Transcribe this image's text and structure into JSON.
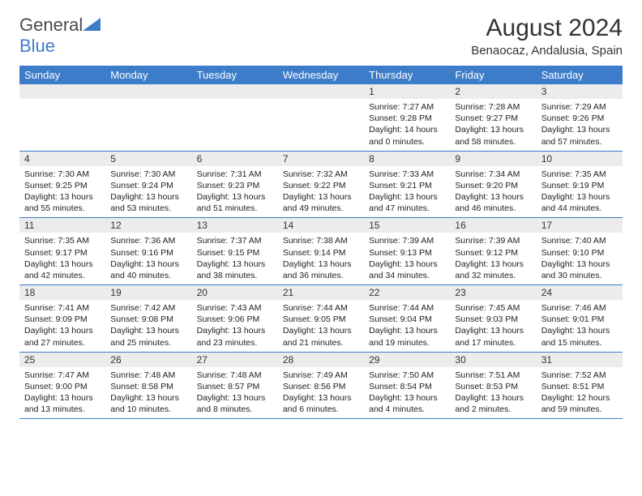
{
  "logo": {
    "text1": "General",
    "text2": "Blue"
  },
  "title": "August 2024",
  "location": "Benaocaz, Andalusia, Spain",
  "colors": {
    "header_bg": "#3d7cc9",
    "header_text": "#ffffff",
    "daynum_bg": "#ececec",
    "border": "#3d7cc9",
    "logo_gray": "#4a4a4a",
    "logo_blue": "#3d7cc9"
  },
  "weekdays": [
    "Sunday",
    "Monday",
    "Tuesday",
    "Wednesday",
    "Thursday",
    "Friday",
    "Saturday"
  ],
  "weeks": [
    {
      "nums": [
        "",
        "",
        "",
        "",
        "1",
        "2",
        "3"
      ],
      "cells": [
        null,
        null,
        null,
        null,
        {
          "sunrise": "7:27 AM",
          "sunset": "9:28 PM",
          "daylight": "14 hours and 0 minutes."
        },
        {
          "sunrise": "7:28 AM",
          "sunset": "9:27 PM",
          "daylight": "13 hours and 58 minutes."
        },
        {
          "sunrise": "7:29 AM",
          "sunset": "9:26 PM",
          "daylight": "13 hours and 57 minutes."
        }
      ]
    },
    {
      "nums": [
        "4",
        "5",
        "6",
        "7",
        "8",
        "9",
        "10"
      ],
      "cells": [
        {
          "sunrise": "7:30 AM",
          "sunset": "9:25 PM",
          "daylight": "13 hours and 55 minutes."
        },
        {
          "sunrise": "7:30 AM",
          "sunset": "9:24 PM",
          "daylight": "13 hours and 53 minutes."
        },
        {
          "sunrise": "7:31 AM",
          "sunset": "9:23 PM",
          "daylight": "13 hours and 51 minutes."
        },
        {
          "sunrise": "7:32 AM",
          "sunset": "9:22 PM",
          "daylight": "13 hours and 49 minutes."
        },
        {
          "sunrise": "7:33 AM",
          "sunset": "9:21 PM",
          "daylight": "13 hours and 47 minutes."
        },
        {
          "sunrise": "7:34 AM",
          "sunset": "9:20 PM",
          "daylight": "13 hours and 46 minutes."
        },
        {
          "sunrise": "7:35 AM",
          "sunset": "9:19 PM",
          "daylight": "13 hours and 44 minutes."
        }
      ]
    },
    {
      "nums": [
        "11",
        "12",
        "13",
        "14",
        "15",
        "16",
        "17"
      ],
      "cells": [
        {
          "sunrise": "7:35 AM",
          "sunset": "9:17 PM",
          "daylight": "13 hours and 42 minutes."
        },
        {
          "sunrise": "7:36 AM",
          "sunset": "9:16 PM",
          "daylight": "13 hours and 40 minutes."
        },
        {
          "sunrise": "7:37 AM",
          "sunset": "9:15 PM",
          "daylight": "13 hours and 38 minutes."
        },
        {
          "sunrise": "7:38 AM",
          "sunset": "9:14 PM",
          "daylight": "13 hours and 36 minutes."
        },
        {
          "sunrise": "7:39 AM",
          "sunset": "9:13 PM",
          "daylight": "13 hours and 34 minutes."
        },
        {
          "sunrise": "7:39 AM",
          "sunset": "9:12 PM",
          "daylight": "13 hours and 32 minutes."
        },
        {
          "sunrise": "7:40 AM",
          "sunset": "9:10 PM",
          "daylight": "13 hours and 30 minutes."
        }
      ]
    },
    {
      "nums": [
        "18",
        "19",
        "20",
        "21",
        "22",
        "23",
        "24"
      ],
      "cells": [
        {
          "sunrise": "7:41 AM",
          "sunset": "9:09 PM",
          "daylight": "13 hours and 27 minutes."
        },
        {
          "sunrise": "7:42 AM",
          "sunset": "9:08 PM",
          "daylight": "13 hours and 25 minutes."
        },
        {
          "sunrise": "7:43 AM",
          "sunset": "9:06 PM",
          "daylight": "13 hours and 23 minutes."
        },
        {
          "sunrise": "7:44 AM",
          "sunset": "9:05 PM",
          "daylight": "13 hours and 21 minutes."
        },
        {
          "sunrise": "7:44 AM",
          "sunset": "9:04 PM",
          "daylight": "13 hours and 19 minutes."
        },
        {
          "sunrise": "7:45 AM",
          "sunset": "9:03 PM",
          "daylight": "13 hours and 17 minutes."
        },
        {
          "sunrise": "7:46 AM",
          "sunset": "9:01 PM",
          "daylight": "13 hours and 15 minutes."
        }
      ]
    },
    {
      "nums": [
        "25",
        "26",
        "27",
        "28",
        "29",
        "30",
        "31"
      ],
      "cells": [
        {
          "sunrise": "7:47 AM",
          "sunset": "9:00 PM",
          "daylight": "13 hours and 13 minutes."
        },
        {
          "sunrise": "7:48 AM",
          "sunset": "8:58 PM",
          "daylight": "13 hours and 10 minutes."
        },
        {
          "sunrise": "7:48 AM",
          "sunset": "8:57 PM",
          "daylight": "13 hours and 8 minutes."
        },
        {
          "sunrise": "7:49 AM",
          "sunset": "8:56 PM",
          "daylight": "13 hours and 6 minutes."
        },
        {
          "sunrise": "7:50 AM",
          "sunset": "8:54 PM",
          "daylight": "13 hours and 4 minutes."
        },
        {
          "sunrise": "7:51 AM",
          "sunset": "8:53 PM",
          "daylight": "13 hours and 2 minutes."
        },
        {
          "sunrise": "7:52 AM",
          "sunset": "8:51 PM",
          "daylight": "12 hours and 59 minutes."
        }
      ]
    }
  ],
  "labels": {
    "sunrise": "Sunrise:",
    "sunset": "Sunset:",
    "daylight": "Daylight:"
  }
}
